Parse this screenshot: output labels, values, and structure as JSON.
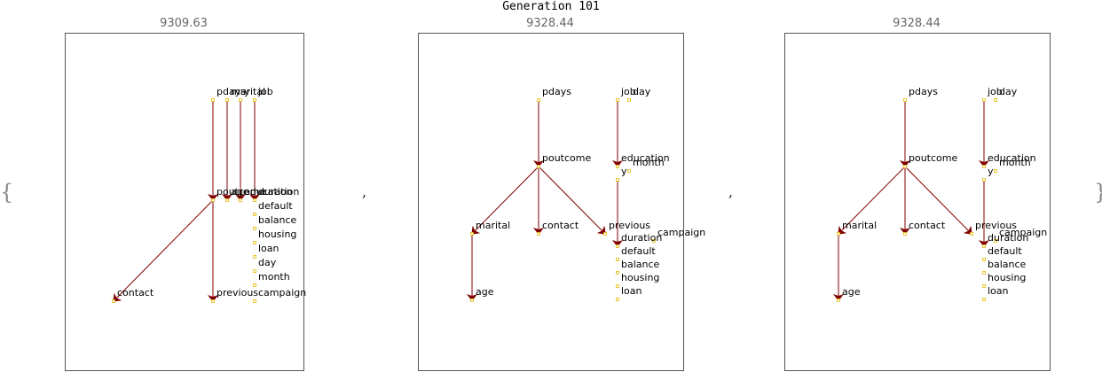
{
  "title": "Generation 101",
  "open_brace": "{",
  "close_brace": "}",
  "separator": ",",
  "panels": [
    {
      "score": "9309.63",
      "nodes": [
        {
          "id": "pdays",
          "label": "pdays"
        },
        {
          "id": "marital",
          "label": "marital"
        },
        {
          "id": "y",
          "label": "y"
        },
        {
          "id": "job",
          "label": "job"
        },
        {
          "id": "poutcome",
          "label": "poutcome"
        },
        {
          "id": "age",
          "label": "age"
        },
        {
          "id": "education",
          "label": "education"
        },
        {
          "id": "duration",
          "label": "duration"
        },
        {
          "id": "default",
          "label": "default"
        },
        {
          "id": "balance",
          "label": "balance"
        },
        {
          "id": "housing",
          "label": "housing"
        },
        {
          "id": "loan",
          "label": "loan"
        },
        {
          "id": "day",
          "label": "day"
        },
        {
          "id": "month",
          "label": "month"
        },
        {
          "id": "contact",
          "label": "contact"
        },
        {
          "id": "previous",
          "label": "previous"
        },
        {
          "id": "campaign",
          "label": "campaign"
        }
      ],
      "edges": [
        [
          "pdays",
          "poutcome"
        ],
        [
          "marital",
          "age"
        ],
        [
          "y",
          "education"
        ],
        [
          "job",
          "duration"
        ],
        [
          "poutcome",
          "contact"
        ],
        [
          "poutcome",
          "previous"
        ]
      ]
    },
    {
      "score": "9328.44",
      "nodes": [
        {
          "id": "pdays",
          "label": "pdays"
        },
        {
          "id": "job",
          "label": "job"
        },
        {
          "id": "day",
          "label": "day"
        },
        {
          "id": "poutcome",
          "label": "poutcome"
        },
        {
          "id": "education",
          "label": "education"
        },
        {
          "id": "month",
          "label": "month"
        },
        {
          "id": "y",
          "label": "y"
        },
        {
          "id": "marital",
          "label": "marital"
        },
        {
          "id": "contact",
          "label": "contact"
        },
        {
          "id": "previous",
          "label": "previous"
        },
        {
          "id": "campaign",
          "label": "campaign"
        },
        {
          "id": "duration",
          "label": "duration"
        },
        {
          "id": "default",
          "label": "default"
        },
        {
          "id": "balance",
          "label": "balance"
        },
        {
          "id": "housing",
          "label": "housing"
        },
        {
          "id": "loan",
          "label": "loan"
        },
        {
          "id": "age",
          "label": "age"
        }
      ],
      "edges": [
        [
          "pdays",
          "poutcome"
        ],
        [
          "job",
          "education"
        ],
        [
          "poutcome",
          "marital"
        ],
        [
          "poutcome",
          "contact"
        ],
        [
          "poutcome",
          "previous"
        ],
        [
          "y",
          "duration"
        ],
        [
          "marital",
          "age"
        ]
      ]
    },
    {
      "score": "9328.44",
      "nodes": [
        {
          "id": "pdays",
          "label": "pdays"
        },
        {
          "id": "job",
          "label": "job"
        },
        {
          "id": "day",
          "label": "day"
        },
        {
          "id": "poutcome",
          "label": "poutcome"
        },
        {
          "id": "education",
          "label": "education"
        },
        {
          "id": "month",
          "label": "month"
        },
        {
          "id": "y",
          "label": "y"
        },
        {
          "id": "marital",
          "label": "marital"
        },
        {
          "id": "contact",
          "label": "contact"
        },
        {
          "id": "previous",
          "label": "previous"
        },
        {
          "id": "campaign",
          "label": "campaign"
        },
        {
          "id": "duration",
          "label": "duration"
        },
        {
          "id": "default",
          "label": "default"
        },
        {
          "id": "balance",
          "label": "balance"
        },
        {
          "id": "housing",
          "label": "housing"
        },
        {
          "id": "loan",
          "label": "loan"
        },
        {
          "id": "age",
          "label": "age"
        }
      ],
      "edges": [
        [
          "pdays",
          "poutcome"
        ],
        [
          "job",
          "education"
        ],
        [
          "poutcome",
          "marital"
        ],
        [
          "poutcome",
          "contact"
        ],
        [
          "poutcome",
          "previous"
        ],
        [
          "y",
          "duration"
        ],
        [
          "marital",
          "age"
        ]
      ]
    }
  ],
  "colors": {
    "edge": "#800000",
    "node_marker": "#e6b800",
    "frame": "#555555"
  }
}
